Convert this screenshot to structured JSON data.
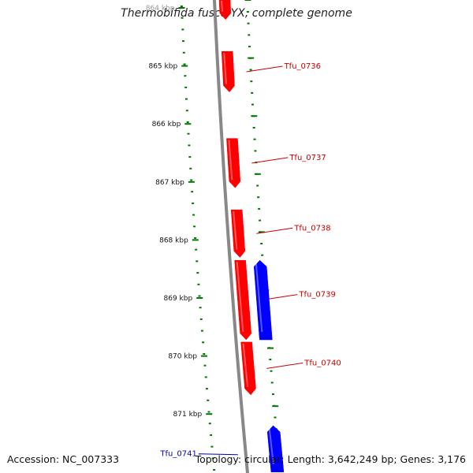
{
  "title": "Thermobifida fusca YX, complete genome",
  "footer": {
    "accession": "Accession: NC_007333",
    "summary": "Topology: circular; Length: 3,642,249 bp; Genes: 3,176"
  },
  "colors": {
    "forward_strand": "#ff0000",
    "reverse_strand": "#0000ff",
    "backbone": "#888888",
    "tick": "#007700",
    "forward_label": "#cc0000",
    "reverse_label": "#0000bb"
  },
  "ticks": [
    "864 kbp",
    "865 kbp",
    "866 kbp",
    "867 kbp",
    "868 kbp",
    "869 kbp",
    "870 kbp",
    "871 kbp"
  ],
  "genes": [
    {
      "name": "",
      "strand": "forward",
      "start_kbp": 863.85,
      "end_kbp": 864.2
    },
    {
      "name": "Tfu_0736",
      "strand": "forward",
      "start_kbp": 864.75,
      "end_kbp": 865.45
    },
    {
      "name": "Tfu_0737",
      "strand": "forward",
      "start_kbp": 866.25,
      "end_kbp": 867.1
    },
    {
      "name": "Tfu_0738",
      "strand": "forward",
      "start_kbp": 867.48,
      "end_kbp": 868.3
    },
    {
      "name": "Tfu_0739",
      "strand": "forward",
      "start_kbp": 868.35,
      "end_kbp": 869.72
    },
    {
      "name": "",
      "strand": "reverse",
      "start_kbp": 868.35,
      "end_kbp": 869.72
    },
    {
      "name": "Tfu_0740",
      "strand": "forward",
      "start_kbp": 869.76,
      "end_kbp": 870.67
    },
    {
      "name": "Tfu_0741",
      "strand": "reverse",
      "start_kbp": 871.2,
      "end_kbp": 872.0
    }
  ]
}
